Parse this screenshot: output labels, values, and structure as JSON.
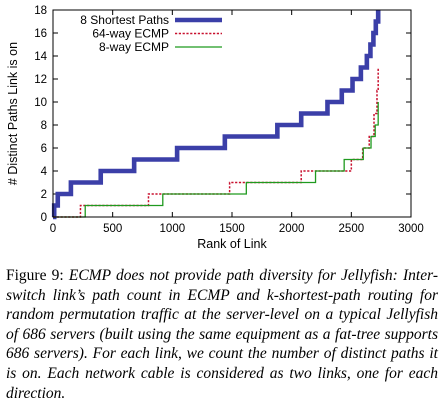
{
  "chart_data": {
    "type": "line",
    "xlabel": "Rank of Link",
    "ylabel": "# Distinct Paths Link is on",
    "xlim": [
      0,
      3000
    ],
    "ylim": [
      0,
      18
    ],
    "xticks": [
      0,
      500,
      1000,
      1500,
      2000,
      2500,
      3000
    ],
    "yticks": [
      0,
      2,
      4,
      6,
      8,
      10,
      12,
      14,
      16,
      18
    ],
    "legend_position": "top-left",
    "grid": false,
    "series": [
      {
        "name": "8 Shortest Paths",
        "color": "#3b3fa8",
        "style": "solid-thick",
        "points": [
          [
            0,
            0
          ],
          [
            10,
            0
          ],
          [
            10,
            1
          ],
          [
            40,
            1
          ],
          [
            40,
            2
          ],
          [
            150,
            2
          ],
          [
            150,
            3
          ],
          [
            400,
            3
          ],
          [
            400,
            4
          ],
          [
            680,
            4
          ],
          [
            680,
            5
          ],
          [
            1040,
            5
          ],
          [
            1040,
            6
          ],
          [
            1440,
            6
          ],
          [
            1440,
            7
          ],
          [
            1880,
            7
          ],
          [
            1880,
            8
          ],
          [
            2080,
            8
          ],
          [
            2080,
            9
          ],
          [
            2300,
            9
          ],
          [
            2300,
            10
          ],
          [
            2420,
            10
          ],
          [
            2420,
            11
          ],
          [
            2510,
            11
          ],
          [
            2510,
            12
          ],
          [
            2580,
            12
          ],
          [
            2580,
            13
          ],
          [
            2630,
            13
          ],
          [
            2630,
            14
          ],
          [
            2660,
            14
          ],
          [
            2660,
            15
          ],
          [
            2685,
            15
          ],
          [
            2685,
            16
          ],
          [
            2705,
            16
          ],
          [
            2705,
            17
          ],
          [
            2725,
            17
          ],
          [
            2725,
            18
          ]
        ]
      },
      {
        "name": "64-way ECMP",
        "color": "#c8102e",
        "style": "dotted",
        "points": [
          [
            0,
            0
          ],
          [
            230,
            0
          ],
          [
            230,
            1
          ],
          [
            800,
            1
          ],
          [
            800,
            2
          ],
          [
            1480,
            2
          ],
          [
            1480,
            3
          ],
          [
            2080,
            3
          ],
          [
            2080,
            4
          ],
          [
            2500,
            4
          ],
          [
            2500,
            5
          ],
          [
            2595,
            5
          ],
          [
            2595,
            6
          ],
          [
            2650,
            6
          ],
          [
            2650,
            7
          ],
          [
            2690,
            7
          ],
          [
            2690,
            9
          ],
          [
            2715,
            9
          ],
          [
            2715,
            11
          ],
          [
            2725,
            11
          ],
          [
            2725,
            13
          ]
        ]
      },
      {
        "name": "8-way ECMP",
        "color": "#1f9a1f",
        "style": "solid",
        "points": [
          [
            0,
            0
          ],
          [
            270,
            0
          ],
          [
            270,
            1
          ],
          [
            920,
            1
          ],
          [
            920,
            2
          ],
          [
            1620,
            2
          ],
          [
            1620,
            3
          ],
          [
            2200,
            3
          ],
          [
            2200,
            4
          ],
          [
            2440,
            4
          ],
          [
            2440,
            5
          ],
          [
            2600,
            5
          ],
          [
            2600,
            6
          ],
          [
            2665,
            6
          ],
          [
            2665,
            7
          ],
          [
            2700,
            7
          ],
          [
            2700,
            8
          ],
          [
            2725,
            8
          ],
          [
            2725,
            10
          ]
        ]
      }
    ]
  },
  "caption": {
    "label": "Figure 9:",
    "body": "ECMP does not provide path diversity for Jellyfish: Inter-switch link’s path count in ECMP and k-shortest-path routing for random permutation traffic at the server-level on a typical Jellyfish of 686 servers (built using the same equipment as a fat-tree supports 686 servers). For each link, we count the number of distinct paths it is on. Each network cable is considered as two links, one for each direction."
  }
}
